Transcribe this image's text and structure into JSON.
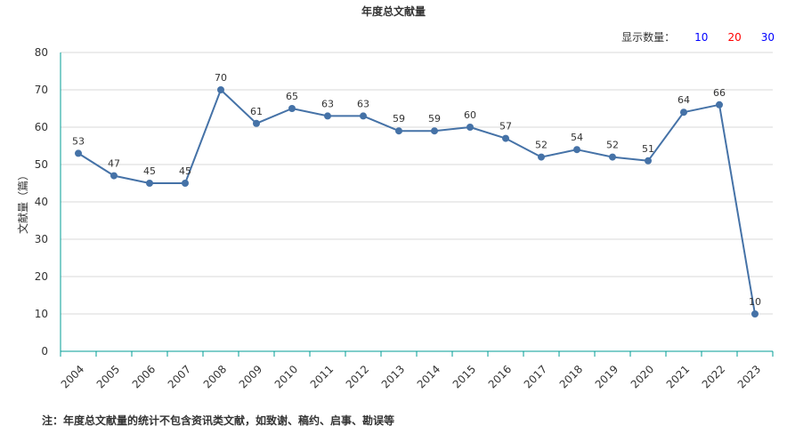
{
  "title": "年度总文献量",
  "count_selector": {
    "label": "显示数量：",
    "options": [
      {
        "label": "10",
        "color": "#0000ff"
      },
      {
        "label": "20",
        "color": "#ff0000"
      },
      {
        "label": "30",
        "color": "#0000ff"
      }
    ]
  },
  "footnote": "注：年度总文献量的统计不包含资讯类文献，如致谢、稿约、启事、勘误等",
  "colors": {
    "line": "#4572a7",
    "marker": "#4572a7",
    "grid": "#d8d8d8",
    "x_axis": "#009e96",
    "y_axis": "#009e96",
    "text": "#333333"
  },
  "chart_data": {
    "type": "line",
    "title": "年度总文献量",
    "xlabel": "",
    "ylabel": "文献量（篇）",
    "ylim": [
      0,
      80
    ],
    "yticks": [
      0,
      10,
      20,
      30,
      40,
      50,
      60,
      70,
      80
    ],
    "grid": true,
    "categories": [
      "2004",
      "2005",
      "2006",
      "2007",
      "2008",
      "2009",
      "2010",
      "2011",
      "2012",
      "2013",
      "2014",
      "2015",
      "2016",
      "2017",
      "2018",
      "2019",
      "2020",
      "2021",
      "2022",
      "2023"
    ],
    "series": [
      {
        "values": [
          53,
          47,
          45,
          45,
          70,
          61,
          65,
          63,
          63,
          59,
          59,
          60,
          57,
          52,
          54,
          52,
          51,
          64,
          66,
          10
        ]
      }
    ]
  }
}
